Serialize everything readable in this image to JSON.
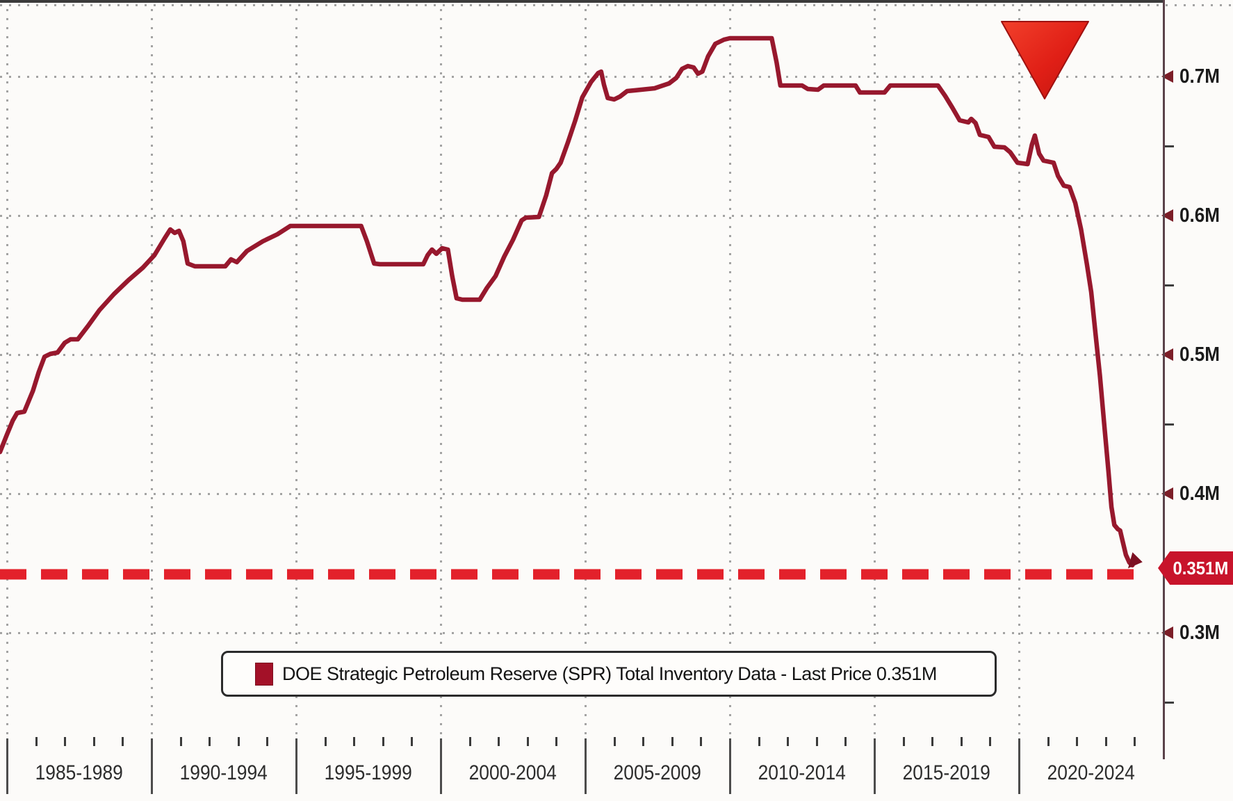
{
  "legend": {
    "text": "DOE Strategic Petroleum Reserve (SPR) Total Inventory Data - Last Price 0.351M",
    "swatch_color": "#a31128"
  },
  "colors": {
    "line": "#97182d",
    "dashed_line": "#e3212b",
    "triangle": "#d7191c",
    "badge": "#c8142b",
    "grid": "#8d8d8d",
    "axis": "#3b3b3b"
  },
  "chart_data": {
    "type": "line",
    "legend_label": "DOE Strategic Petroleum Reserve (SPR) Total Inventory Data - Last Price 0.351M",
    "unit": "M",
    "grid": "dotted",
    "legend_position": "bottom-center",
    "x_axis": {
      "period_labels": [
        "1985-1989",
        "1990-1994",
        "1995-1999",
        "2000-2004",
        "2005-2009",
        "2010-2014",
        "2015-2019",
        "2020-2024"
      ],
      "start_year": 1985,
      "end_year": 2025,
      "years_per_period": 5
    },
    "y_axis": {
      "ticks": [
        {
          "label": "0.7M",
          "value": 0.7
        },
        {
          "label": "0.6M",
          "value": 0.6
        },
        {
          "label": "0.5M",
          "value": 0.5
        },
        {
          "label": "0.4M",
          "value": 0.4
        },
        {
          "label": "0.3M",
          "value": 0.3
        }
      ],
      "minor_values": [
        0.65,
        0.55,
        0.45,
        0.25
      ],
      "top_edge_value": 0.7515,
      "range": [
        0.224,
        0.755
      ]
    },
    "support_line": {
      "style": "dashed",
      "color": "#e3212b",
      "value": 0.342,
      "end_year": 2024.0
    },
    "annotations": [
      {
        "type": "down-triangle",
        "year_center": 2020.9,
        "value_top": 0.7395,
        "value_bottom": 0.684,
        "half_width_years": 1.51
      }
    ],
    "last_price_badge": {
      "text": "0.351M",
      "value": 0.351
    },
    "series": [
      {
        "name": "DOE Strategic Petroleum Reserve (SPR) Total Inventory",
        "last_price": 0.351,
        "color": "#97182d",
        "points": [
          [
            1984.76,
            0.43
          ],
          [
            1985.0,
            0.4425
          ],
          [
            1985.2,
            0.4525
          ],
          [
            1985.35,
            0.458
          ],
          [
            1985.6,
            0.459
          ],
          [
            1985.9,
            0.474
          ],
          [
            1986.1,
            0.4875
          ],
          [
            1986.3,
            0.4985
          ],
          [
            1986.5,
            0.5005
          ],
          [
            1986.75,
            0.5015
          ],
          [
            1987.0,
            0.5085
          ],
          [
            1987.2,
            0.511
          ],
          [
            1987.45,
            0.511
          ],
          [
            1987.8,
            0.5205
          ],
          [
            1988.2,
            0.532
          ],
          [
            1988.7,
            0.5435
          ],
          [
            1989.2,
            0.5535
          ],
          [
            1989.7,
            0.5625
          ],
          [
            1990.1,
            0.5715
          ],
          [
            1990.45,
            0.5835
          ],
          [
            1990.65,
            0.59
          ],
          [
            1990.8,
            0.5875
          ],
          [
            1990.95,
            0.589
          ],
          [
            1991.1,
            0.5815
          ],
          [
            1991.25,
            0.5655
          ],
          [
            1991.5,
            0.5635
          ],
          [
            1992.55,
            0.5635
          ],
          [
            1992.75,
            0.5685
          ],
          [
            1992.95,
            0.5665
          ],
          [
            1993.3,
            0.5745
          ],
          [
            1993.85,
            0.5815
          ],
          [
            1994.35,
            0.5865
          ],
          [
            1994.8,
            0.5925
          ],
          [
            1997.25,
            0.5925
          ],
          [
            1997.45,
            0.5815
          ],
          [
            1997.7,
            0.5655
          ],
          [
            1997.9,
            0.565
          ],
          [
            1999.4,
            0.565
          ],
          [
            1999.55,
            0.5715
          ],
          [
            1999.7,
            0.5755
          ],
          [
            1999.85,
            0.5725
          ],
          [
            2000.05,
            0.5765
          ],
          [
            2000.25,
            0.5755
          ],
          [
            2000.4,
            0.5565
          ],
          [
            2000.55,
            0.5405
          ],
          [
            2000.75,
            0.5395
          ],
          [
            2001.35,
            0.5395
          ],
          [
            2001.6,
            0.548
          ],
          [
            2001.9,
            0.5565
          ],
          [
            2002.2,
            0.5705
          ],
          [
            2002.5,
            0.5825
          ],
          [
            2002.8,
            0.5965
          ],
          [
            2002.95,
            0.5985
          ],
          [
            2003.4,
            0.599
          ],
          [
            2003.65,
            0.6145
          ],
          [
            2003.85,
            0.6305
          ],
          [
            2004.0,
            0.6335
          ],
          [
            2004.15,
            0.638
          ],
          [
            2004.4,
            0.6525
          ],
          [
            2004.65,
            0.668
          ],
          [
            2004.9,
            0.685
          ],
          [
            2005.2,
            0.696
          ],
          [
            2005.45,
            0.7025
          ],
          [
            2005.55,
            0.7035
          ],
          [
            2005.65,
            0.694
          ],
          [
            2005.78,
            0.6845
          ],
          [
            2006.0,
            0.6835
          ],
          [
            2006.2,
            0.6855
          ],
          [
            2006.45,
            0.6895
          ],
          [
            2006.7,
            0.69
          ],
          [
            2007.4,
            0.6915
          ],
          [
            2007.9,
            0.695
          ],
          [
            2008.15,
            0.699
          ],
          [
            2008.35,
            0.7055
          ],
          [
            2008.55,
            0.7075
          ],
          [
            2008.75,
            0.7065
          ],
          [
            2008.9,
            0.702
          ],
          [
            2009.05,
            0.7035
          ],
          [
            2009.25,
            0.7145
          ],
          [
            2009.5,
            0.7235
          ],
          [
            2009.8,
            0.7265
          ],
          [
            2010.0,
            0.7275
          ],
          [
            2011.45,
            0.7275
          ],
          [
            2011.62,
            0.71
          ],
          [
            2011.75,
            0.6935
          ],
          [
            2012.5,
            0.6935
          ],
          [
            2012.7,
            0.691
          ],
          [
            2013.05,
            0.6905
          ],
          [
            2013.25,
            0.6935
          ],
          [
            2014.35,
            0.6935
          ],
          [
            2014.5,
            0.6885
          ],
          [
            2015.35,
            0.6885
          ],
          [
            2015.55,
            0.6935
          ],
          [
            2017.2,
            0.6935
          ],
          [
            2017.45,
            0.686
          ],
          [
            2017.7,
            0.6775
          ],
          [
            2017.95,
            0.6685
          ],
          [
            2018.25,
            0.667
          ],
          [
            2018.35,
            0.6695
          ],
          [
            2018.5,
            0.6665
          ],
          [
            2018.65,
            0.658
          ],
          [
            2018.95,
            0.6565
          ],
          [
            2019.15,
            0.6495
          ],
          [
            2019.5,
            0.649
          ],
          [
            2019.7,
            0.6455
          ],
          [
            2019.95,
            0.638
          ],
          [
            2020.3,
            0.637
          ],
          [
            2020.45,
            0.651
          ],
          [
            2020.55,
            0.6575
          ],
          [
            2020.7,
            0.6445
          ],
          [
            2020.85,
            0.6395
          ],
          [
            2021.2,
            0.638
          ],
          [
            2021.35,
            0.6285
          ],
          [
            2021.55,
            0.6215
          ],
          [
            2021.75,
            0.6205
          ],
          [
            2021.95,
            0.609
          ],
          [
            2022.15,
            0.59
          ],
          [
            2022.35,
            0.565
          ],
          [
            2022.5,
            0.545
          ],
          [
            2022.65,
            0.515
          ],
          [
            2022.8,
            0.485
          ],
          [
            2022.95,
            0.45
          ],
          [
            2023.1,
            0.415
          ],
          [
            2023.2,
            0.3905
          ],
          [
            2023.3,
            0.3775
          ],
          [
            2023.42,
            0.3745
          ],
          [
            2023.5,
            0.3735
          ],
          [
            2023.58,
            0.3665
          ],
          [
            2023.7,
            0.356
          ],
          [
            2023.82,
            0.3505
          ],
          [
            2023.92,
            0.3485
          ],
          [
            2024.0,
            0.3515
          ]
        ]
      }
    ]
  }
}
